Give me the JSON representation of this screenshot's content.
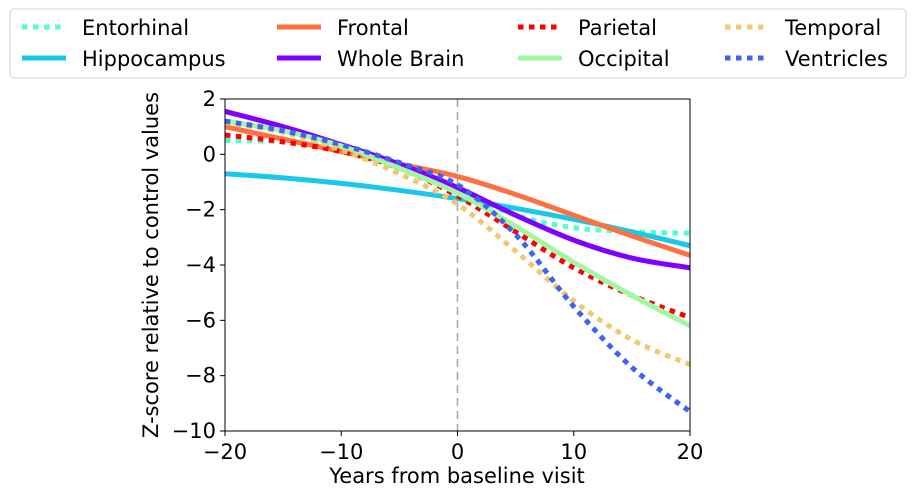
{
  "chart_data": {
    "type": "line",
    "title": "",
    "xlabel": "Years from baseline visit",
    "ylabel": "Z-score relative to control values",
    "xlim": [
      -20,
      20
    ],
    "ylim": [
      -10,
      2
    ],
    "x_ticks": [
      -20,
      -10,
      0,
      10,
      20
    ],
    "y_ticks": [
      2,
      0,
      -2,
      -4,
      -6,
      -8,
      -10
    ],
    "x_tick_labels": [
      "−20",
      "−10",
      "0",
      "10",
      "20"
    ],
    "y_tick_labels": [
      "2",
      "0",
      "−2",
      "−4",
      "−6",
      "−8",
      "−10"
    ],
    "grid": false,
    "legend_position": "top, outside plot",
    "reference_line": {
      "x": 0,
      "style": "dashed",
      "color": "#aaaaaa"
    },
    "series": [
      {
        "name": "Entorhinal",
        "color": "#4fffd2",
        "style": "dotted",
        "x": [
          -20,
          -15,
          -10,
          -5,
          0,
          5,
          10,
          15,
          20
        ],
        "y": [
          0.5,
          0.45,
          0.2,
          -0.45,
          -1.3,
          -2.2,
          -2.65,
          -2.8,
          -2.85
        ]
      },
      {
        "name": "Hippocampus",
        "color": "#19c8e8",
        "style": "solid",
        "x": [
          -20,
          -15,
          -10,
          -5,
          0,
          5,
          10,
          15,
          20
        ],
        "y": [
          -0.7,
          -0.85,
          -1.05,
          -1.3,
          -1.6,
          -1.95,
          -2.35,
          -2.8,
          -3.3
        ]
      },
      {
        "name": "Frontal",
        "color": "#ff7040",
        "style": "solid",
        "x": [
          -20,
          -15,
          -10,
          -5,
          0,
          5,
          10,
          15,
          20
        ],
        "y": [
          1.0,
          0.55,
          0.1,
          -0.35,
          -0.8,
          -1.45,
          -2.2,
          -2.95,
          -3.65
        ]
      },
      {
        "name": "Whole Brain",
        "color": "#8000ff",
        "style": "solid",
        "x": [
          -20,
          -15,
          -10,
          -5,
          0,
          5,
          10,
          15,
          20
        ],
        "y": [
          1.55,
          1.0,
          0.35,
          -0.35,
          -1.2,
          -2.2,
          -3.1,
          -3.75,
          -4.1
        ]
      },
      {
        "name": "Parietal",
        "color": "#ff0000",
        "style": "dotted",
        "x": [
          -20,
          -15,
          -10,
          -5,
          0,
          5,
          10,
          15,
          20
        ],
        "y": [
          0.7,
          0.45,
          0.1,
          -0.5,
          -1.5,
          -2.8,
          -4.1,
          -5.1,
          -5.9
        ]
      },
      {
        "name": "Occipital",
        "color": "#a0f8a0",
        "style": "solid",
        "x": [
          -20,
          -15,
          -10,
          -5,
          0,
          5,
          10,
          15,
          20
        ],
        "y": [
          1.2,
          0.85,
          0.3,
          -0.5,
          -1.4,
          -2.6,
          -3.9,
          -5.1,
          -6.2
        ]
      },
      {
        "name": "Temporal",
        "color": "#f0c86e",
        "style": "dotted",
        "x": [
          -20,
          -15,
          -10,
          -5,
          0,
          5,
          10,
          15,
          20
        ],
        "y": [
          1.15,
          0.8,
          0.15,
          -0.7,
          -1.8,
          -3.5,
          -5.3,
          -6.7,
          -7.6
        ]
      },
      {
        "name": "Ventricles",
        "color": "#3c64f0",
        "style": "dotted",
        "x": [
          -20,
          -15,
          -10,
          -5,
          0,
          5,
          10,
          15,
          20
        ],
        "y": [
          1.2,
          0.85,
          0.35,
          -0.3,
          -1.1,
          -2.9,
          -5.5,
          -7.7,
          -9.3
        ]
      }
    ]
  }
}
